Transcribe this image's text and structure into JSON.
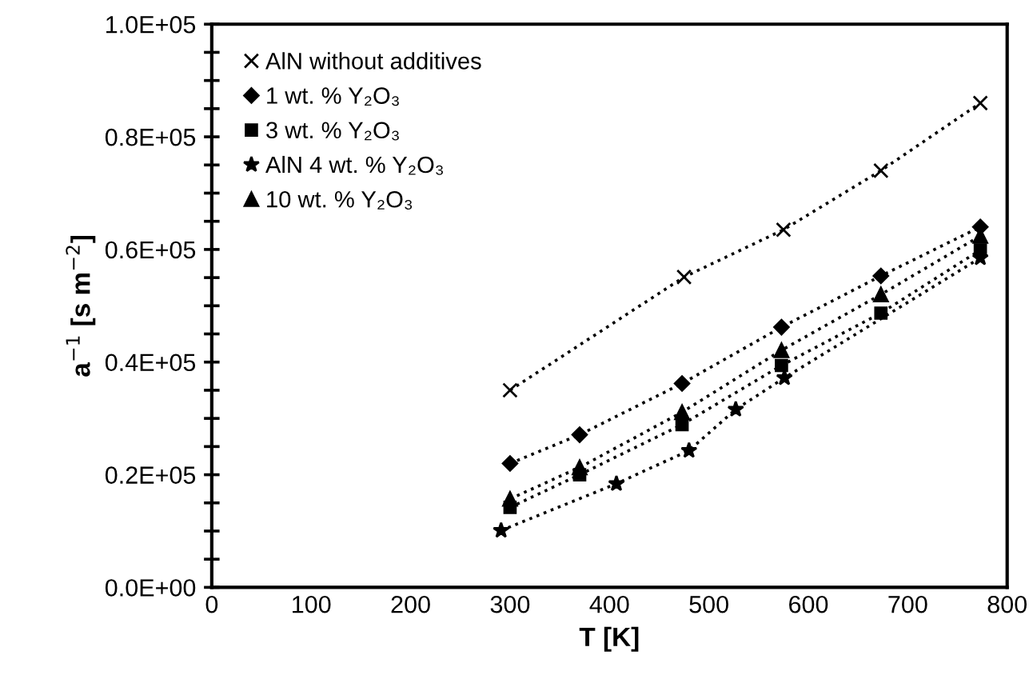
{
  "chart_data": {
    "type": "line",
    "xlabel": "T [K]",
    "ylabel": "a$^{−1}$ [s m$^{−2}$]",
    "xlim": [
      0,
      800
    ],
    "xticks": [
      0,
      100,
      200,
      300,
      400,
      500,
      600,
      700,
      800
    ],
    "ylim": [
      0,
      100000
    ],
    "yticks": [
      {
        "value": 0,
        "label": "0.0E+00"
      },
      {
        "value": 5000,
        "label": null
      },
      {
        "value": 10000,
        "label": null
      },
      {
        "value": 15000,
        "label": null
      },
      {
        "value": 20000,
        "label": "0.2E+05"
      },
      {
        "value": 25000,
        "label": null
      },
      {
        "value": 30000,
        "label": null
      },
      {
        "value": 35000,
        "label": null
      },
      {
        "value": 40000,
        "label": "0.4E+05"
      },
      {
        "value": 45000,
        "label": null
      },
      {
        "value": 50000,
        "label": null
      },
      {
        "value": 55000,
        "label": null
      },
      {
        "value": 60000,
        "label": "0.6E+05"
      },
      {
        "value": 65000,
        "label": null
      },
      {
        "value": 70000,
        "label": null
      },
      {
        "value": 75000,
        "label": null
      },
      {
        "value": 80000,
        "label": "0.8E+05"
      },
      {
        "value": 85000,
        "label": null
      },
      {
        "value": 90000,
        "label": null
      },
      {
        "value": 95000,
        "label": null
      },
      {
        "value": 100000,
        "label": "1.0E+05"
      }
    ],
    "grid": false,
    "legend": "top left",
    "line_style": "dotted",
    "series": [
      {
        "name": "AlN without additives",
        "color": "#000000",
        "marker": "cross",
        "x": [
          300,
          475,
          575,
          673,
          773
        ],
        "values": [
          35000,
          55100,
          63500,
          74000,
          86000
        ]
      },
      {
        "name": "1 wt. % Y₂O₃",
        "color": "#000000",
        "marker": "diamond",
        "x": [
          300,
          370,
          473,
          573,
          673,
          773
        ],
        "values": [
          22000,
          27100,
          36200,
          46200,
          55300,
          64000
        ]
      },
      {
        "name": "3 wt. % Y₂O₃",
        "color": "#000000",
        "marker": "square",
        "x": [
          300,
          370,
          473,
          573,
          673,
          773
        ],
        "values": [
          14200,
          20000,
          28900,
          39400,
          48700,
          59900
        ]
      },
      {
        "name": "AlN 4 wt. % Y₂O₃",
        "color": "#000000",
        "marker": "star",
        "x": [
          291,
          407,
          480,
          527,
          576,
          773
        ],
        "values": [
          10100,
          18400,
          24300,
          31600,
          37200,
          58500
        ]
      },
      {
        "name": "10 wt. % Y₂O₃",
        "color": "#000000",
        "marker": "triangle",
        "x": [
          300,
          370,
          473,
          573,
          673,
          773
        ],
        "values": [
          15700,
          21300,
          31100,
          42100,
          52000,
          62400
        ]
      }
    ]
  }
}
